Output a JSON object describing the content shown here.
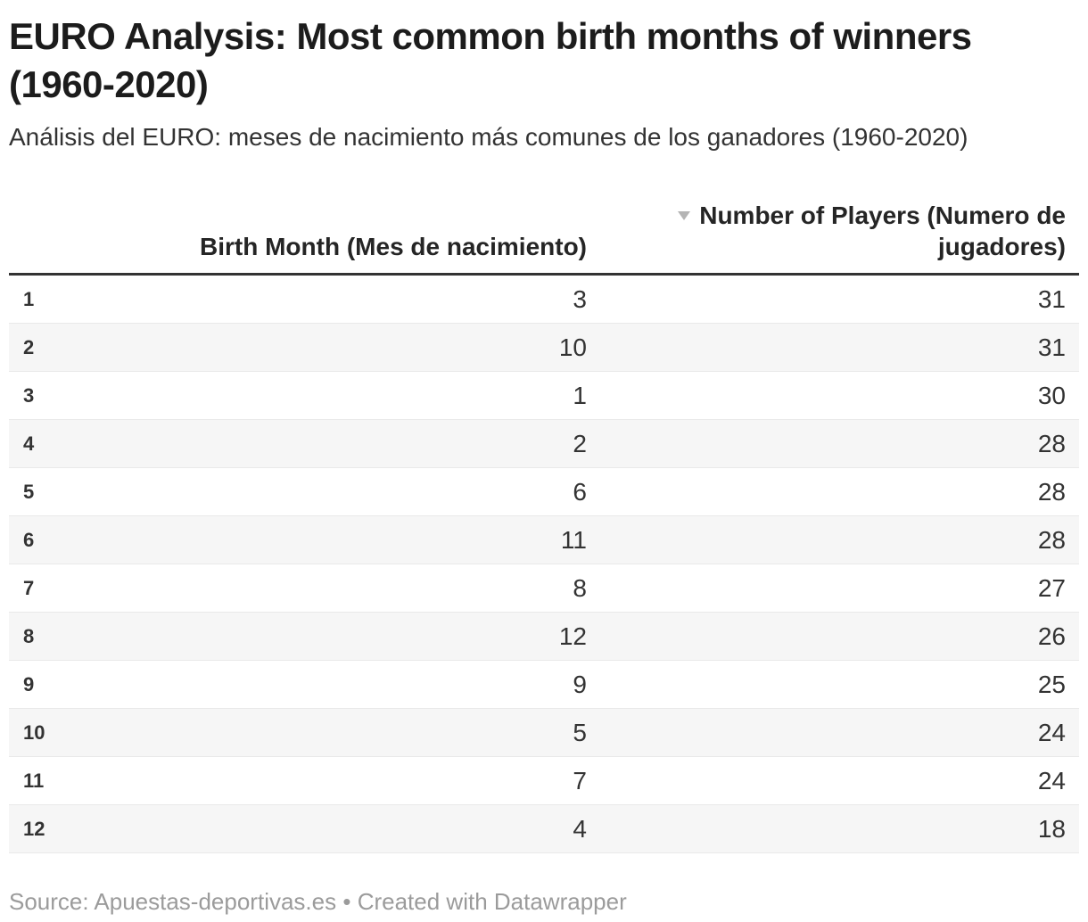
{
  "header": {
    "title": "EURO Analysis: Most common birth months of winners (1960-2020)",
    "subtitle": "Análisis del EURO: meses de nacimiento más comunes de los ganadores (1960-2020)"
  },
  "table": {
    "columns": [
      {
        "label": ""
      },
      {
        "label": "Birth Month (Mes de nacimiento)"
      },
      {
        "label": "Number of Players (Numero de jugadores)",
        "sorted": "descending"
      }
    ],
    "rows": [
      {
        "index": "1",
        "birth_month": "3",
        "players": "31"
      },
      {
        "index": "2",
        "birth_month": "10",
        "players": "31"
      },
      {
        "index": "3",
        "birth_month": "1",
        "players": "30"
      },
      {
        "index": "4",
        "birth_month": "2",
        "players": "28"
      },
      {
        "index": "5",
        "birth_month": "6",
        "players": "28"
      },
      {
        "index": "6",
        "birth_month": "11",
        "players": "28"
      },
      {
        "index": "7",
        "birth_month": "8",
        "players": "27"
      },
      {
        "index": "8",
        "birth_month": "12",
        "players": "26"
      },
      {
        "index": "9",
        "birth_month": "9",
        "players": "25"
      },
      {
        "index": "10",
        "birth_month": "5",
        "players": "24"
      },
      {
        "index": "11",
        "birth_month": "7",
        "players": "24"
      },
      {
        "index": "12",
        "birth_month": "4",
        "players": "18"
      }
    ]
  },
  "footer": {
    "source_label": "Source:",
    "source_name": "Apuestas-deportivas.es",
    "separator": "•",
    "credit": "Created with Datawrapper"
  },
  "icons": {
    "sort_descending": "triangle-down"
  },
  "colors": {
    "title": "#1c1c1c",
    "body_text": "#333333",
    "header_rule": "#333333",
    "zebra_row": "#f6f6f6",
    "row_border": "#e9e9e9",
    "sort_arrow": "#b4b4b4",
    "footer_text": "#9b9b9b",
    "background": "#ffffff"
  },
  "chart_data": {
    "type": "table",
    "title": "EURO Analysis: Most common birth months of winners (1960-2020)",
    "subtitle": "Análisis del EURO: meses de nacimiento más comunes de los ganadores (1960-2020)",
    "columns": [
      "Row",
      "Birth Month (Mes de nacimiento)",
      "Number of Players (Numero de jugadores)"
    ],
    "sorted_by": "Number of Players (Numero de jugadores)",
    "sort_order": "descending",
    "rows": [
      [
        1,
        3,
        31
      ],
      [
        2,
        10,
        31
      ],
      [
        3,
        1,
        30
      ],
      [
        4,
        2,
        28
      ],
      [
        5,
        6,
        28
      ],
      [
        6,
        11,
        28
      ],
      [
        7,
        8,
        27
      ],
      [
        8,
        12,
        26
      ],
      [
        9,
        9,
        25
      ],
      [
        10,
        5,
        24
      ],
      [
        11,
        7,
        24
      ],
      [
        12,
        4,
        18
      ]
    ],
    "source": "Apuestas-deportivas.es",
    "credit": "Created with Datawrapper"
  }
}
